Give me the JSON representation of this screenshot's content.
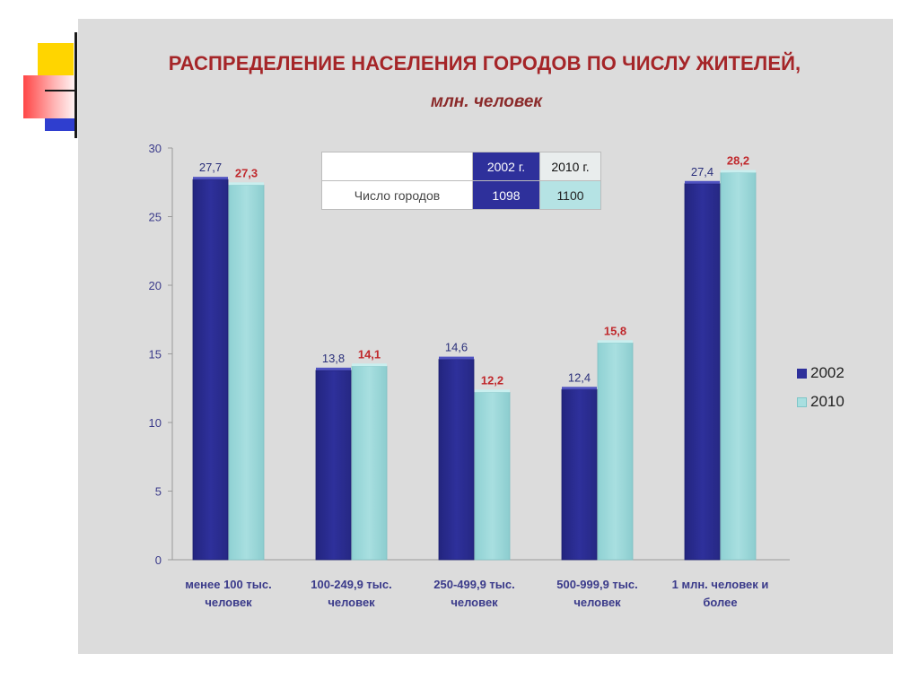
{
  "slide": {
    "title": "РАСПРЕДЕЛЕНИЕ НАСЕЛЕНИЯ ГОРОДОВ ПО ЧИСЛУ ЖИТЕЛЕЙ,",
    "subtitle": "млн. человек"
  },
  "table": {
    "header_blank": "",
    "col1": "2002 г.",
    "col2": "2010 г.",
    "row_label": "Число городов",
    "val1": "1098",
    "val2": "1100"
  },
  "legend": {
    "item1": "2002",
    "item2": "2010"
  },
  "colors": {
    "series_2002": "#2e309b",
    "series_2010": "#a8dfe0",
    "label_2002": "#2a2f7a",
    "label_2010": "#c0282c",
    "axis_text": "#3a3a8a"
  },
  "chart_data": {
    "type": "bar",
    "categories": [
      [
        "менее 100 тыс.",
        "человек"
      ],
      [
        "100-249,9 тыс.",
        "человек"
      ],
      [
        "250-499,9 тыс.",
        "человек"
      ],
      [
        "500-999,9 тыс.",
        "человек"
      ],
      [
        "1 млн. человек и",
        "более"
      ]
    ],
    "series": [
      {
        "name": "2002",
        "values": [
          27.7,
          13.8,
          14.6,
          12.4,
          27.4
        ],
        "labels": [
          "27,7",
          "13,8",
          "14,6",
          "12,4",
          "27,4"
        ]
      },
      {
        "name": "2010",
        "values": [
          27.3,
          14.1,
          12.2,
          15.8,
          28.2
        ],
        "labels": [
          "27,3",
          "14,1",
          "12,2",
          "15,8",
          "28,2"
        ]
      }
    ],
    "ylim": [
      0,
      30
    ],
    "yticks": [
      0,
      5,
      10,
      15,
      20,
      25,
      30
    ],
    "grid": false,
    "legend_position": "right"
  }
}
